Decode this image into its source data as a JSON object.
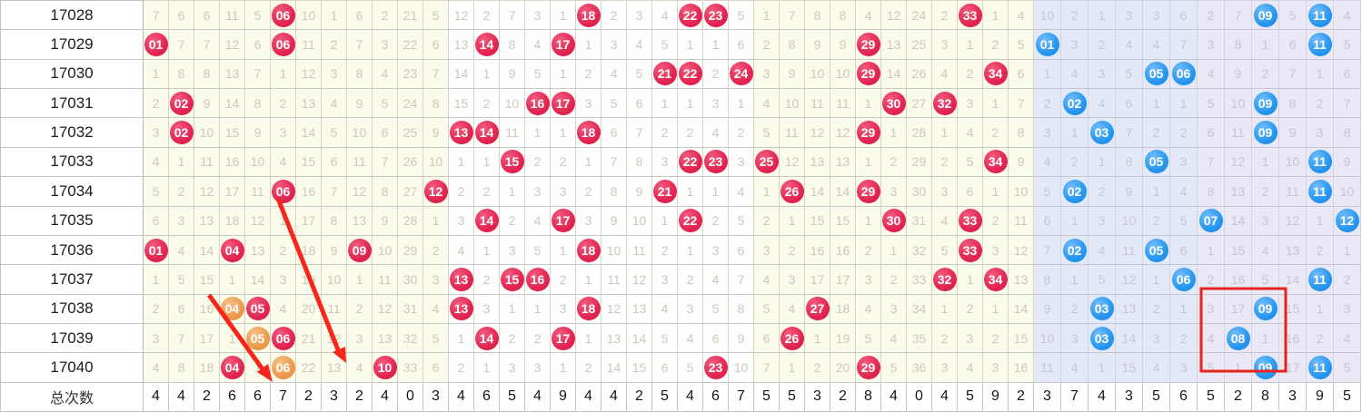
{
  "title": "lottery-trend-chart",
  "summary_label": "总次数",
  "colors": {
    "red_ball": "#e22550",
    "orange_ball": "#ec9a4c",
    "blue_ball": "#2696f0",
    "cream_band": "#fbfbec",
    "white_band": "#fefefe",
    "blue_band_1": "#e4e9f7",
    "blue_band_2": "#e9e8f4",
    "miss_text_red_zone": "#ccc8bc",
    "miss_text_blue_zone": "#c6c4da",
    "annotation_red": "#f6261b"
  },
  "chart_data": {
    "type": "table",
    "front_zone_columns": 35,
    "back_zone_columns": 12,
    "rows": [
      {
        "label": "17028",
        "front_balls": [
          "06",
          "18",
          "22",
          "23",
          "33"
        ],
        "back_balls": [
          "09",
          "11"
        ],
        "red": [
          "7",
          "6",
          "6",
          "11",
          "5",
          {
            "v": "06",
            "b": "red"
          },
          "10",
          "1",
          "6",
          "2",
          "21",
          "5",
          "12",
          "2",
          "7",
          "3",
          "1",
          {
            "v": "18",
            "b": "red"
          },
          "2",
          "3",
          "4",
          {
            "v": "22",
            "b": "red"
          },
          {
            "v": "23",
            "b": "red"
          },
          "5",
          "1",
          "7",
          "8",
          "8",
          "4",
          "12",
          "24",
          "2",
          {
            "v": "33",
            "b": "red"
          },
          "1",
          "4"
        ],
        "blue": [
          "10",
          "2",
          "1",
          "3",
          "3",
          "6",
          "2",
          "7",
          {
            "v": "09",
            "b": "blue"
          },
          "5",
          {
            "v": "11",
            "b": "blue"
          },
          "4"
        ]
      },
      {
        "label": "17029",
        "front_balls": [
          "01",
          "06",
          "14",
          "17",
          "29"
        ],
        "back_balls": [
          "01",
          "11"
        ],
        "red": [
          {
            "v": "01",
            "b": "red"
          },
          "7",
          "7",
          "12",
          "6",
          {
            "v": "06",
            "b": "red"
          },
          "11",
          "2",
          "7",
          "3",
          "22",
          "6",
          "13",
          {
            "v": "14",
            "b": "red"
          },
          "8",
          "4",
          {
            "v": "17",
            "b": "red"
          },
          "1",
          "3",
          "4",
          "5",
          "1",
          "1",
          "6",
          "2",
          "8",
          "9",
          "9",
          {
            "v": "29",
            "b": "red"
          },
          "13",
          "25",
          "3",
          "1",
          "2",
          "5"
        ],
        "blue": [
          {
            "v": "01",
            "b": "blue"
          },
          "3",
          "2",
          "4",
          "4",
          "7",
          "3",
          "8",
          "1",
          "6",
          {
            "v": "11",
            "b": "blue"
          },
          "5"
        ]
      },
      {
        "label": "17030",
        "front_balls": [
          "21",
          "22",
          "24",
          "29",
          "34"
        ],
        "back_balls": [
          "05",
          "06"
        ],
        "red": [
          "1",
          "8",
          "8",
          "13",
          "7",
          "1",
          "12",
          "3",
          "8",
          "4",
          "23",
          "7",
          "14",
          "1",
          "9",
          "5",
          "1",
          "2",
          "4",
          "5",
          {
            "v": "21",
            "b": "red"
          },
          {
            "v": "22",
            "b": "red"
          },
          "2",
          {
            "v": "24",
            "b": "red"
          },
          "3",
          "9",
          "10",
          "10",
          {
            "v": "29",
            "b": "red"
          },
          "14",
          "26",
          "4",
          "2",
          {
            "v": "34",
            "b": "red"
          },
          "6"
        ],
        "blue": [
          "1",
          "4",
          "3",
          "5",
          {
            "v": "05",
            "b": "blue"
          },
          {
            "v": "06",
            "b": "blue"
          },
          "4",
          "9",
          "2",
          "7",
          "1",
          "6"
        ]
      },
      {
        "label": "17031",
        "front_balls": [
          "02",
          "16",
          "17",
          "30",
          "32"
        ],
        "back_balls": [
          "02",
          "09"
        ],
        "red": [
          "2",
          {
            "v": "02",
            "b": "red"
          },
          "9",
          "14",
          "8",
          "2",
          "13",
          "4",
          "9",
          "5",
          "24",
          "8",
          "15",
          "2",
          "10",
          {
            "v": "16",
            "b": "red"
          },
          {
            "v": "17",
            "b": "red"
          },
          "3",
          "5",
          "6",
          "1",
          "1",
          "3",
          "1",
          "4",
          "10",
          "11",
          "11",
          "1",
          {
            "v": "30",
            "b": "red"
          },
          "27",
          {
            "v": "32",
            "b": "red"
          },
          "3",
          "1",
          "7"
        ],
        "blue": [
          "2",
          {
            "v": "02",
            "b": "blue"
          },
          "4",
          "6",
          "1",
          "1",
          "5",
          "10",
          {
            "v": "09",
            "b": "blue"
          },
          "8",
          "2",
          "7"
        ]
      },
      {
        "label": "17032",
        "front_balls": [
          "02",
          "13",
          "14",
          "18",
          "29"
        ],
        "back_balls": [
          "03",
          "09"
        ],
        "red": [
          "3",
          {
            "v": "02",
            "b": "red"
          },
          "10",
          "15",
          "9",
          "3",
          "14",
          "5",
          "10",
          "6",
          "25",
          "9",
          {
            "v": "13",
            "b": "red"
          },
          {
            "v": "14",
            "b": "red"
          },
          "11",
          "1",
          "1",
          {
            "v": "18",
            "b": "red"
          },
          "6",
          "7",
          "2",
          "2",
          "4",
          "2",
          "5",
          "11",
          "12",
          "12",
          {
            "v": "29",
            "b": "red"
          },
          "1",
          "28",
          "1",
          "4",
          "2",
          "8"
        ],
        "blue": [
          "3",
          "1",
          {
            "v": "03",
            "b": "blue"
          },
          "7",
          "2",
          "2",
          "6",
          "11",
          {
            "v": "09",
            "b": "blue"
          },
          "9",
          "3",
          "8"
        ]
      },
      {
        "label": "17033",
        "front_balls": [
          "15",
          "22",
          "23",
          "25",
          "34"
        ],
        "back_balls": [
          "05",
          "11"
        ],
        "red": [
          "4",
          "1",
          "11",
          "16",
          "10",
          "4",
          "15",
          "6",
          "11",
          "7",
          "26",
          "10",
          "1",
          "1",
          {
            "v": "15",
            "b": "red"
          },
          "2",
          "2",
          "1",
          "7",
          "8",
          "3",
          {
            "v": "22",
            "b": "red"
          },
          {
            "v": "23",
            "b": "red"
          },
          "3",
          {
            "v": "25",
            "b": "red"
          },
          "12",
          "13",
          "13",
          "1",
          "2",
          "29",
          "2",
          "5",
          {
            "v": "34",
            "b": "red"
          },
          "9"
        ],
        "blue": [
          "4",
          "2",
          "1",
          "8",
          {
            "v": "05",
            "b": "blue"
          },
          "3",
          "7",
          "12",
          "1",
          "10",
          {
            "v": "11",
            "b": "blue"
          },
          "9"
        ]
      },
      {
        "label": "17034",
        "front_balls": [
          "06",
          "12",
          "21",
          "26",
          "29"
        ],
        "back_balls": [
          "02",
          "11"
        ],
        "red": [
          "5",
          "2",
          "12",
          "17",
          "11",
          {
            "v": "06",
            "b": "red"
          },
          "16",
          "7",
          "12",
          "8",
          "27",
          {
            "v": "12",
            "b": "red"
          },
          "2",
          "2",
          "1",
          "3",
          "3",
          "2",
          "8",
          "9",
          {
            "v": "21",
            "b": "red"
          },
          "1",
          "1",
          "4",
          "1",
          {
            "v": "26",
            "b": "red"
          },
          "14",
          "14",
          {
            "v": "29",
            "b": "red"
          },
          "3",
          "30",
          "3",
          "6",
          "1",
          "10"
        ],
        "blue": [
          "5",
          {
            "v": "02",
            "b": "blue"
          },
          "2",
          "9",
          "1",
          "4",
          "8",
          "13",
          "2",
          "11",
          {
            "v": "11",
            "b": "blue"
          },
          "10"
        ]
      },
      {
        "label": "17035",
        "front_balls": [
          "14",
          "17",
          "22",
          "30",
          "33"
        ],
        "back_balls": [
          "07",
          "12"
        ],
        "red": [
          "6",
          "3",
          "13",
          "18",
          "12",
          "1",
          "17",
          "8",
          "13",
          "9",
          "28",
          "1",
          "3",
          {
            "v": "14",
            "b": "red"
          },
          "2",
          "4",
          {
            "v": "17",
            "b": "red"
          },
          "3",
          "9",
          "10",
          "1",
          {
            "v": "22",
            "b": "red"
          },
          "2",
          "5",
          "2",
          "1",
          "15",
          "15",
          "1",
          {
            "v": "30",
            "b": "red"
          },
          "31",
          "4",
          {
            "v": "33",
            "b": "red"
          },
          "2",
          "11"
        ],
        "blue": [
          "6",
          "1",
          "3",
          "10",
          "2",
          "5",
          {
            "v": "07",
            "b": "blue"
          },
          "14",
          "3",
          "12",
          "1",
          {
            "v": "12",
            "b": "blue"
          }
        ]
      },
      {
        "label": "17036",
        "front_balls": [
          "01",
          "04",
          "09",
          "18",
          "33"
        ],
        "back_balls": [
          "02",
          "05"
        ],
        "red": [
          {
            "v": "01",
            "b": "red"
          },
          "4",
          "14",
          {
            "v": "04",
            "b": "red"
          },
          "13",
          "2",
          "18",
          "9",
          {
            "v": "09",
            "b": "red"
          },
          "10",
          "29",
          "2",
          "4",
          "1",
          "3",
          "5",
          "1",
          {
            "v": "18",
            "b": "red"
          },
          "10",
          "11",
          "2",
          "1",
          "3",
          "6",
          "3",
          "2",
          "16",
          "16",
          "2",
          "1",
          "32",
          "5",
          {
            "v": "33",
            "b": "red"
          },
          "3",
          "12"
        ],
        "blue": [
          "7",
          {
            "v": "02",
            "b": "blue"
          },
          "4",
          "11",
          {
            "v": "05",
            "b": "blue"
          },
          "6",
          "1",
          "15",
          "4",
          "13",
          "2",
          "1"
        ]
      },
      {
        "label": "17037",
        "front_balls": [
          "13",
          "15",
          "16",
          "32",
          "34"
        ],
        "back_balls": [
          "06",
          "11"
        ],
        "red": [
          "1",
          "5",
          "15",
          "1",
          "14",
          "3",
          "19",
          "10",
          "1",
          "11",
          "30",
          "3",
          {
            "v": "13",
            "b": "red"
          },
          "2",
          {
            "v": "15",
            "b": "red"
          },
          {
            "v": "16",
            "b": "red"
          },
          "2",
          "1",
          "11",
          "12",
          "3",
          "2",
          "4",
          "7",
          "4",
          "3",
          "17",
          "17",
          "3",
          "2",
          "33",
          {
            "v": "32",
            "b": "red"
          },
          "1",
          {
            "v": "34",
            "b": "red"
          },
          "13"
        ],
        "blue": [
          "8",
          "1",
          "5",
          "12",
          "1",
          {
            "v": "06",
            "b": "blue"
          },
          "2",
          "16",
          "5",
          "14",
          {
            "v": "11",
            "b": "blue"
          },
          "2"
        ]
      },
      {
        "label": "17038",
        "front_balls": [
          "04",
          "05",
          "13",
          "18",
          "27"
        ],
        "back_balls": [
          "03",
          "09"
        ],
        "red": [
          "2",
          "6",
          "16",
          {
            "v": "04",
            "b": "orange"
          },
          {
            "v": "05",
            "b": "red"
          },
          "4",
          "20",
          "11",
          "2",
          "12",
          "31",
          "4",
          {
            "v": "13",
            "b": "red"
          },
          "3",
          "1",
          "1",
          "3",
          {
            "v": "18",
            "b": "red"
          },
          "12",
          "13",
          "4",
          "3",
          "5",
          "8",
          "5",
          "4",
          {
            "v": "27",
            "b": "red"
          },
          "18",
          "4",
          "3",
          "34",
          "1",
          "2",
          "1",
          "14"
        ],
        "blue": [
          "9",
          "2",
          {
            "v": "03",
            "b": "blue"
          },
          "13",
          "2",
          "1",
          "3",
          "17",
          {
            "v": "09",
            "b": "blue"
          },
          "15",
          "1",
          "3"
        ]
      },
      {
        "label": "17039",
        "front_balls": [
          "05",
          "06",
          "14",
          "17",
          "26"
        ],
        "back_balls": [
          "03",
          "08"
        ],
        "red": [
          "3",
          "7",
          "17",
          "1",
          {
            "v": "05",
            "b": "orange"
          },
          {
            "v": "06",
            "b": "red"
          },
          "21",
          "12",
          "3",
          "13",
          "32",
          "5",
          "1",
          {
            "v": "14",
            "b": "red"
          },
          "2",
          "2",
          {
            "v": "17",
            "b": "red"
          },
          "1",
          "13",
          "14",
          "5",
          "4",
          "6",
          "9",
          "6",
          {
            "v": "26",
            "b": "red"
          },
          "1",
          "19",
          "5",
          "4",
          "35",
          "2",
          "3",
          "2",
          "15"
        ],
        "blue": [
          "10",
          "3",
          {
            "v": "03",
            "b": "blue"
          },
          "14",
          "3",
          "2",
          "4",
          {
            "v": "08",
            "b": "blue"
          },
          "1",
          "16",
          "2",
          "4"
        ]
      },
      {
        "label": "17040",
        "front_balls": [
          "04",
          "06",
          "10",
          "23",
          "29"
        ],
        "back_balls": [
          "09",
          "11"
        ],
        "red": [
          "4",
          "8",
          "18",
          {
            "v": "04",
            "b": "red"
          },
          "1",
          {
            "v": "06",
            "b": "orange"
          },
          "22",
          "13",
          "4",
          {
            "v": "10",
            "b": "red"
          },
          "33",
          "6",
          "2",
          "1",
          "3",
          "3",
          "1",
          "2",
          "14",
          "15",
          "6",
          "5",
          {
            "v": "23",
            "b": "red"
          },
          "10",
          "7",
          "1",
          "2",
          "20",
          {
            "v": "29",
            "b": "red"
          },
          "5",
          "36",
          "3",
          "4",
          "3",
          "16"
        ],
        "blue": [
          "11",
          "4",
          "1",
          "15",
          "4",
          "3",
          "5",
          "1",
          {
            "v": "09",
            "b": "blue"
          },
          "17",
          {
            "v": "11",
            "b": "blue"
          },
          "5"
        ]
      }
    ],
    "summary": {
      "label": "总次数",
      "red": [
        "4",
        "4",
        "2",
        "6",
        "6",
        "7",
        "2",
        "3",
        "2",
        "4",
        "0",
        "3",
        "4",
        "6",
        "5",
        "4",
        "9",
        "4",
        "4",
        "2",
        "5",
        "4",
        "6",
        "7",
        "5",
        "5",
        "3",
        "2",
        "8",
        "4",
        "0",
        "4",
        "5",
        "9",
        "2"
      ],
      "blue": [
        "3",
        "7",
        "4",
        "3",
        "5",
        "6",
        "5",
        "2",
        "8",
        "3",
        "9",
        "5"
      ]
    }
  },
  "annotations": {
    "arrow_1": "diagonal-trend-arrow-04-05-06",
    "arrow_2": "diagonal-trend-arrow-long",
    "rectangle": "highlight-box-back-zone-rows-17038-17040"
  }
}
